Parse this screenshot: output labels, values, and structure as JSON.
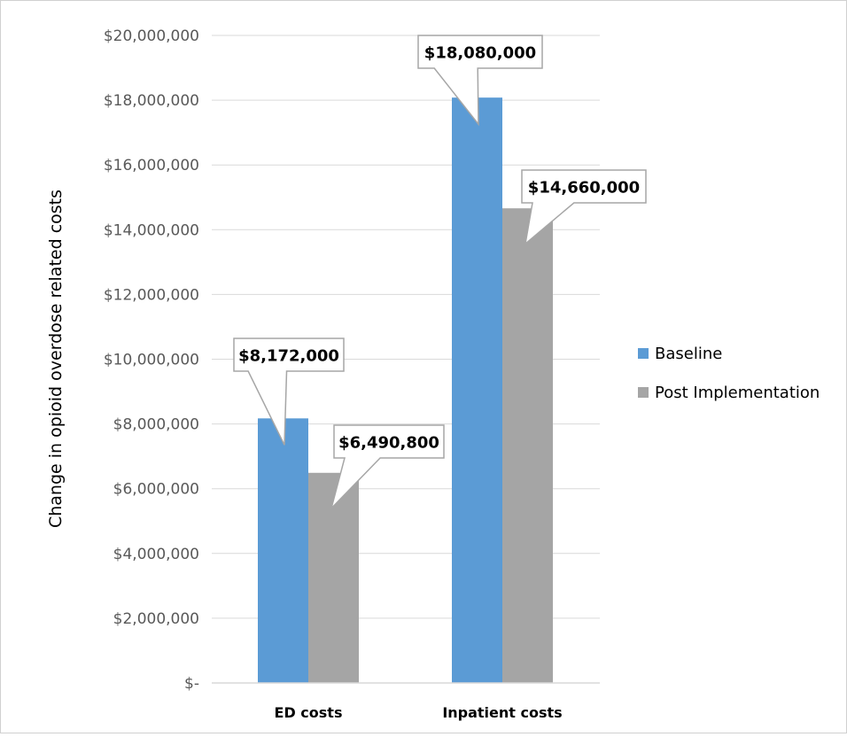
{
  "chart_data": {
    "type": "bar",
    "title": "",
    "xlabel": "",
    "ylabel": "Change in opioid overdose related costs",
    "categories": [
      "ED costs",
      "Inpatient costs"
    ],
    "series": [
      {
        "name": "Baseline",
        "color": "#5b9bd5",
        "values": [
          8172000,
          18080000
        ],
        "labels": [
          "$8,172,000",
          "$18,080,000"
        ]
      },
      {
        "name": "Post Implementation",
        "color": "#a5a5a5",
        "values": [
          6490800,
          14660000
        ],
        "labels": [
          "$6,490,800",
          "$14,660,000"
        ]
      }
    ],
    "ylim": [
      0,
      20000000
    ],
    "yticks": [
      0,
      2000000,
      4000000,
      6000000,
      8000000,
      10000000,
      12000000,
      14000000,
      16000000,
      18000000,
      20000000
    ],
    "ytick_labels": [
      "$-",
      "$2,000,000",
      "$4,000,000",
      "$6,000,000",
      "$8,000,000",
      "$10,000,000",
      "$12,000,000",
      "$14,000,000",
      "$16,000,000",
      "$18,000,000",
      "$20,000,000"
    ],
    "grid": true,
    "legend": "right"
  }
}
